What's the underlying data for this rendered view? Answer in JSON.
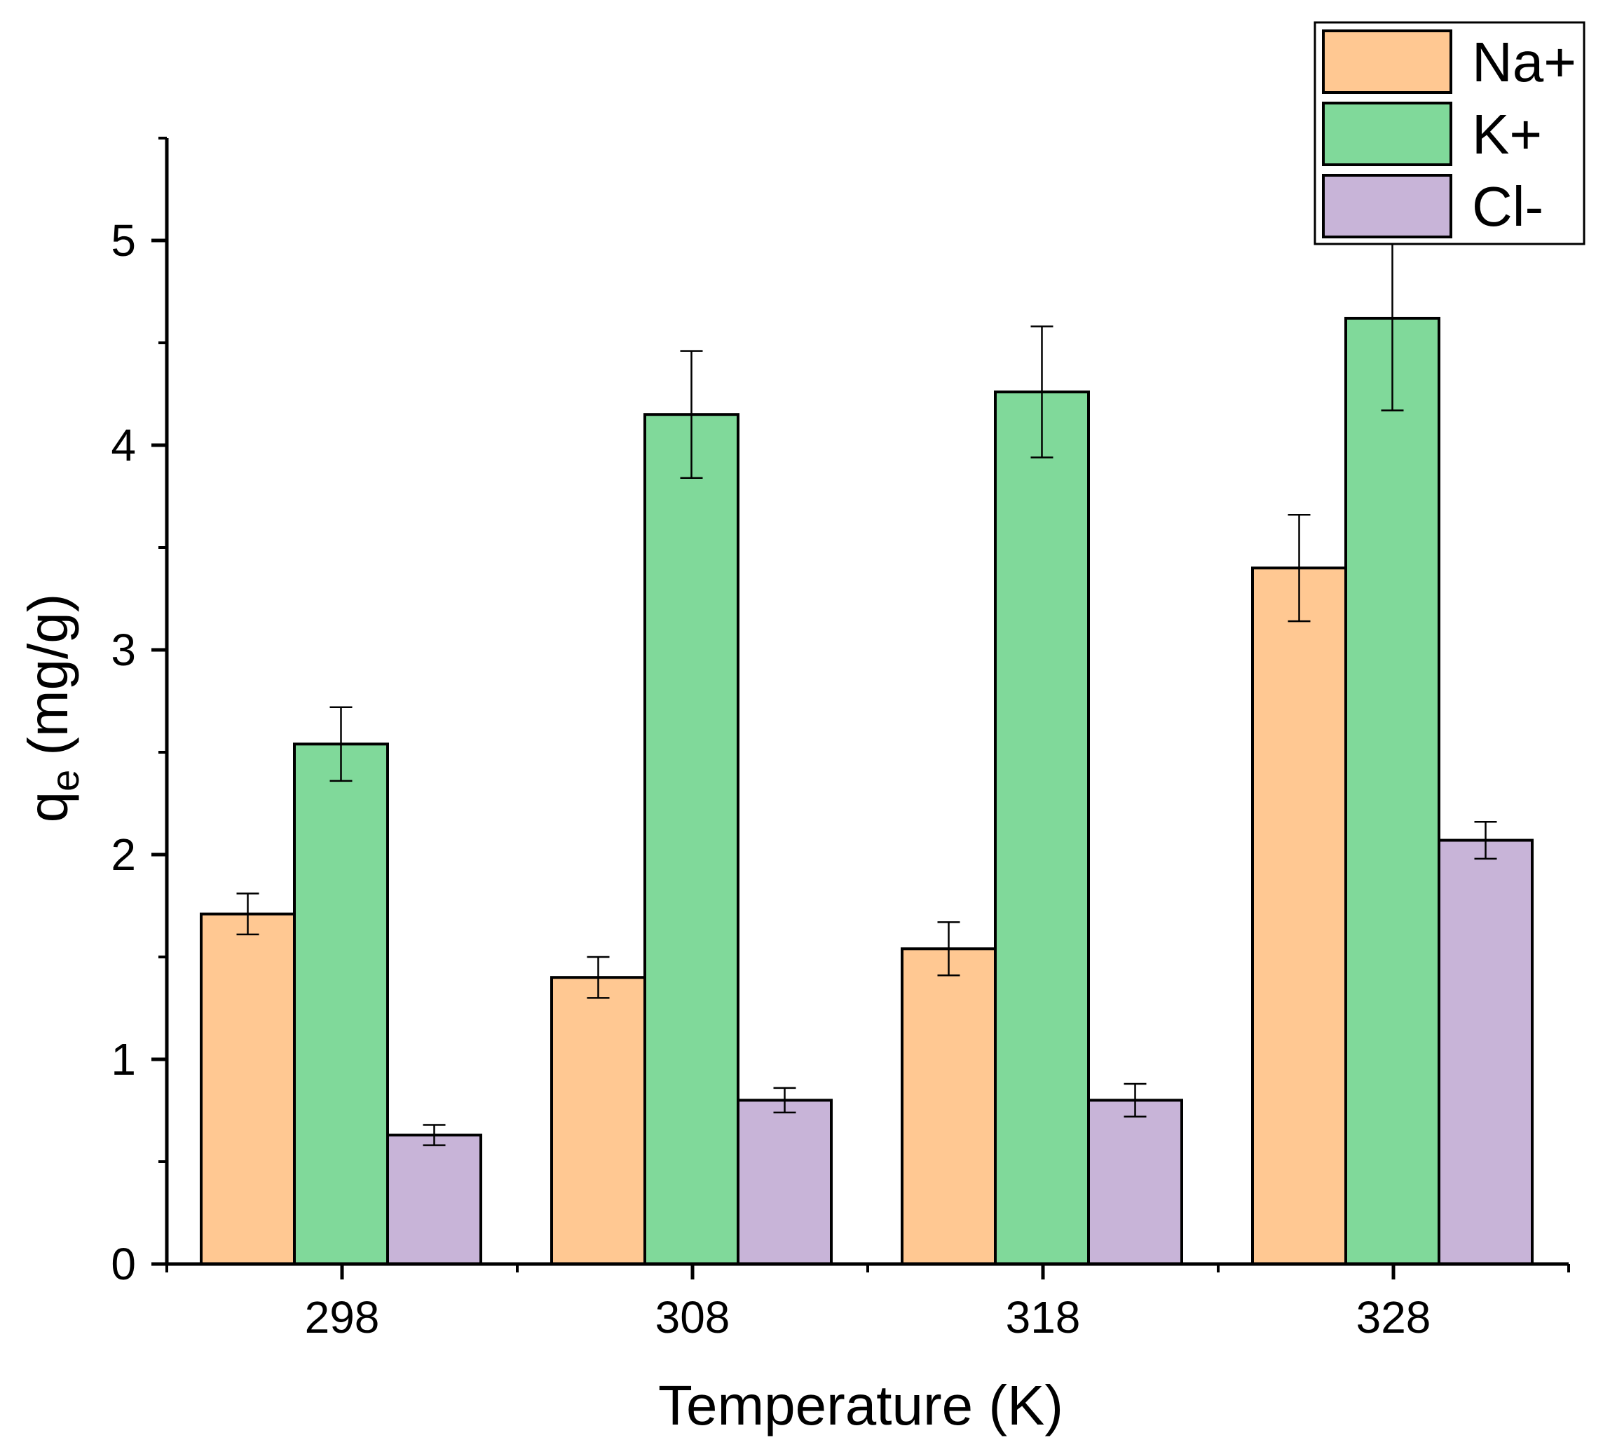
{
  "chart_data": {
    "type": "bar",
    "title": "",
    "xlabel": "Temperature (K)",
    "ylabel": {
      "main": "q",
      "subscript": "e",
      "units": "(mg/g)"
    },
    "categories": [
      "298",
      "308",
      "318",
      "328"
    ],
    "ylim": [
      0,
      5.5
    ],
    "yticks": [
      0,
      1,
      2,
      3,
      4,
      5
    ],
    "ytick_labels": [
      "0",
      "1",
      "2",
      "3",
      "4",
      "5"
    ],
    "minor_y_step": 0.5,
    "grid": false,
    "legend_position": "top-right",
    "series": [
      {
        "name": "Na+",
        "color": "#FFC892",
        "values": [
          1.71,
          1.4,
          1.54,
          3.4
        ],
        "errors": [
          0.1,
          0.1,
          0.13,
          0.26
        ]
      },
      {
        "name": "K+",
        "color": "#80D99A",
        "values": [
          2.54,
          4.15,
          4.26,
          4.62
        ],
        "errors": [
          0.18,
          0.31,
          0.32,
          0.45
        ]
      },
      {
        "name": "Cl-",
        "color": "#C8B4D8",
        "values": [
          0.63,
          0.8,
          0.8,
          2.07
        ],
        "errors": [
          0.05,
          0.06,
          0.08,
          0.09
        ]
      }
    ]
  }
}
